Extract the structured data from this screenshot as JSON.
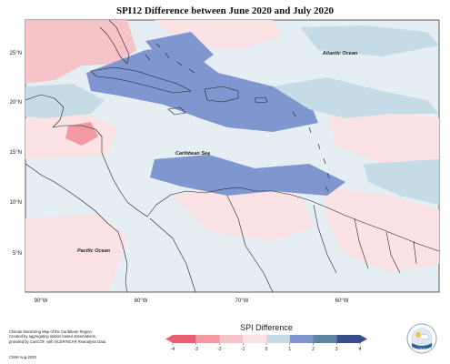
{
  "title": "SPI12 Difference between June 2020 and July 2020",
  "labels": {
    "atlantic": "Atlantic Ocean",
    "caribbean": "Caribbean Sea",
    "pacific": "Pacific Ocean"
  },
  "lat_ticks": [
    "25°N",
    "20°N",
    "15°N",
    "10°N",
    "5°N"
  ],
  "lon_ticks": [
    "90°W",
    "80°W",
    "70°W",
    "60°W"
  ],
  "legend": {
    "title": "SPI Difference",
    "tick_labels": [
      "-4",
      "-3",
      "-2",
      "-1",
      "0",
      "1",
      "2",
      "3",
      "4"
    ],
    "colors": [
      "#e8606d",
      "#f19aa3",
      "#f6c3c8",
      "#fbe3e5",
      "#e4eef3",
      "#c5dce6",
      "#7f96cf",
      "#5d83a0",
      "#3b4d86"
    ]
  },
  "footer": {
    "note": "Climate Monitoring Map of the Caribbean Region.\nCreated by aggregating station based observations,\nprovided by CariCOF, with NCEP/NCAR Reanalysis Data.",
    "credit": "CIMH Aug-2020"
  },
  "logo_text": "CIMH",
  "colors": {
    "dry_light": "#fbe3e5",
    "dry": "#f6c3c8",
    "dry_strong": "#f19aa3",
    "wet_light": "#c5dce6",
    "wet": "#7f96cf",
    "neutral": "#e4eef3"
  }
}
